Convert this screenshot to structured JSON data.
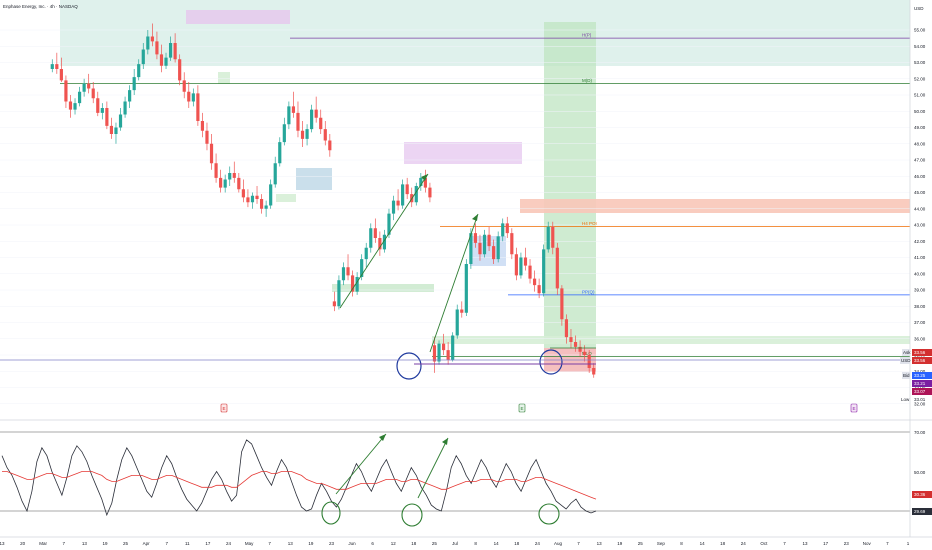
{
  "chart_title": "Enphase Energy, Inc. · 4h · NASDAQ",
  "currency": "USD",
  "chart_data": {
    "type": "candlestick",
    "price_axis_ticks": [
      "55.00",
      "54.00",
      "53.00",
      "52.00",
      "51.00",
      "50.00",
      "49.00",
      "48.00",
      "47.00",
      "46.00",
      "45.00",
      "44.00",
      "43.00",
      "42.00",
      "41.00",
      "40.00",
      "39.00",
      "38.00",
      "37.00",
      "36.00",
      "35.00",
      "34.00",
      "33.00",
      "32.00"
    ],
    "date_axis_ticks": [
      "13",
      "20",
      "Mar",
      "7",
      "13",
      "19",
      "25",
      "Apr",
      "7",
      "11",
      "17",
      "24",
      "May",
      "7",
      "13",
      "19",
      "23",
      "Jun",
      "6",
      "12",
      "18",
      "25",
      "Jul",
      "8",
      "14",
      "18",
      "24",
      "Aug",
      "7",
      "13",
      "19",
      "25",
      "Sep",
      "8",
      "14",
      "18",
      "24",
      "Oct",
      "7",
      "13",
      "17",
      "23",
      "Nov",
      "7",
      "1"
    ],
    "ohlc": [
      [
        52.6,
        53.2,
        52.4,
        52.9
      ],
      [
        52.9,
        53.6,
        52.3,
        52.6
      ],
      [
        52.6,
        53.3,
        51.8,
        51.9
      ],
      [
        51.9,
        52.2,
        50.2,
        50.6
      ],
      [
        50.6,
        51.0,
        49.6,
        50.1
      ],
      [
        50.1,
        50.8,
        49.8,
        50.5
      ],
      [
        50.5,
        51.5,
        50.3,
        51.2
      ],
      [
        51.2,
        52.0,
        50.9,
        51.7
      ],
      [
        51.7,
        52.3,
        51.1,
        51.4
      ],
      [
        51.4,
        51.8,
        50.5,
        50.8
      ],
      [
        50.8,
        51.2,
        49.7,
        49.9
      ],
      [
        49.9,
        50.5,
        49.5,
        50.2
      ],
      [
        50.2,
        50.6,
        48.9,
        49.1
      ],
      [
        49.1,
        49.6,
        48.3,
        48.6
      ],
      [
        48.6,
        49.3,
        48.0,
        49.0
      ],
      [
        49.0,
        50.2,
        48.8,
        49.8
      ],
      [
        49.8,
        50.9,
        49.6,
        50.6
      ],
      [
        50.6,
        51.6,
        50.2,
        51.3
      ],
      [
        51.3,
        52.6,
        51.0,
        52.1
      ],
      [
        52.1,
        53.2,
        51.9,
        52.9
      ],
      [
        52.9,
        54.2,
        52.6,
        53.8
      ],
      [
        53.8,
        55.0,
        53.5,
        54.6
      ],
      [
        54.6,
        55.4,
        54.0,
        54.3
      ],
      [
        54.3,
        54.9,
        53.2,
        53.5
      ],
      [
        53.5,
        54.1,
        52.4,
        52.8
      ],
      [
        52.8,
        53.6,
        52.6,
        53.3
      ],
      [
        53.3,
        54.6,
        53.1,
        54.2
      ],
      [
        54.2,
        54.8,
        53.0,
        53.2
      ],
      [
        53.2,
        53.5,
        51.6,
        51.9
      ],
      [
        51.9,
        52.4,
        50.8,
        51.2
      ],
      [
        51.2,
        51.8,
        50.2,
        50.6
      ],
      [
        50.6,
        51.4,
        50.3,
        51.1
      ],
      [
        51.1,
        51.6,
        49.1,
        49.4
      ],
      [
        49.4,
        49.9,
        48.4,
        48.8
      ],
      [
        48.8,
        49.3,
        47.6,
        48.0
      ],
      [
        48.0,
        48.6,
        46.4,
        46.8
      ],
      [
        46.8,
        47.4,
        45.6,
        45.9
      ],
      [
        45.9,
        46.4,
        45.0,
        45.3
      ],
      [
        45.3,
        46.1,
        45.0,
        45.8
      ],
      [
        45.8,
        46.6,
        45.4,
        46.2
      ],
      [
        46.2,
        46.9,
        45.6,
        45.9
      ],
      [
        45.9,
        46.2,
        45.0,
        45.2
      ],
      [
        45.2,
        45.8,
        44.4,
        44.7
      ],
      [
        44.7,
        45.2,
        44.1,
        44.4
      ],
      [
        44.4,
        45.0,
        44.0,
        44.8
      ],
      [
        44.8,
        45.4,
        44.3,
        44.6
      ],
      [
        44.6,
        44.9,
        43.7,
        44.0
      ],
      [
        44.0,
        44.5,
        43.5,
        44.2
      ],
      [
        44.2,
        45.8,
        44.0,
        45.5
      ],
      [
        45.5,
        47.2,
        45.3,
        46.8
      ],
      [
        46.8,
        48.4,
        46.6,
        48.1
      ],
      [
        48.1,
        49.6,
        47.9,
        49.2
      ],
      [
        49.2,
        50.6,
        48.9,
        50.3
      ],
      [
        50.3,
        51.2,
        49.6,
        49.9
      ],
      [
        49.9,
        50.6,
        48.4,
        48.8
      ],
      [
        48.8,
        49.4,
        47.8,
        48.3
      ],
      [
        48.3,
        49.2,
        47.9,
        48.9
      ],
      [
        48.9,
        50.4,
        48.7,
        50.1
      ],
      [
        50.1,
        50.9,
        49.3,
        49.6
      ],
      [
        49.6,
        50.1,
        48.6,
        48.9
      ],
      [
        48.9,
        49.4,
        47.9,
        48.2
      ],
      [
        48.2,
        48.6,
        47.2,
        47.6
      ],
      [
        38.3,
        38.9,
        37.7,
        38.0
      ],
      [
        38.0,
        39.9,
        37.8,
        39.6
      ],
      [
        39.6,
        40.7,
        39.3,
        40.4
      ],
      [
        40.4,
        41.2,
        39.6,
        39.9
      ],
      [
        39.9,
        40.2,
        38.6,
        38.9
      ],
      [
        38.9,
        40.1,
        38.7,
        39.8
      ],
      [
        39.8,
        41.2,
        39.6,
        40.9
      ],
      [
        40.9,
        41.9,
        40.4,
        41.6
      ],
      [
        41.6,
        43.1,
        41.3,
        42.8
      ],
      [
        42.8,
        43.4,
        41.9,
        42.2
      ],
      [
        42.2,
        42.6,
        41.1,
        41.5
      ],
      [
        41.5,
        42.7,
        41.3,
        42.4
      ],
      [
        42.4,
        44.0,
        42.2,
        43.7
      ],
      [
        43.7,
        44.8,
        43.3,
        44.5
      ],
      [
        44.5,
        45.2,
        43.9,
        44.2
      ],
      [
        44.2,
        45.8,
        44.0,
        45.5
      ],
      [
        45.5,
        45.9,
        44.6,
        44.9
      ],
      [
        44.9,
        45.3,
        44.1,
        44.4
      ],
      [
        44.4,
        45.6,
        44.2,
        45.4
      ],
      [
        45.4,
        46.2,
        45.1,
        45.9
      ],
      [
        45.9,
        46.4,
        45.0,
        45.3
      ],
      [
        45.3,
        45.6,
        44.4,
        44.7
      ],
      [
        35.6,
        36.1,
        33.9,
        34.6
      ],
      [
        34.6,
        35.9,
        34.4,
        35.7
      ],
      [
        35.7,
        36.3,
        35.0,
        35.3
      ],
      [
        35.3,
        35.8,
        34.4,
        34.7
      ],
      [
        34.7,
        36.4,
        34.6,
        36.2
      ],
      [
        36.2,
        38.1,
        36.0,
        37.8
      ],
      [
        37.8,
        38.3,
        37.3,
        37.6
      ],
      [
        37.6,
        40.9,
        37.4,
        40.6
      ],
      [
        40.6,
        42.8,
        40.3,
        42.5
      ],
      [
        42.5,
        43.1,
        41.6,
        41.9
      ],
      [
        41.9,
        42.4,
        40.8,
        41.2
      ],
      [
        41.2,
        42.7,
        41.0,
        42.4
      ],
      [
        42.4,
        42.9,
        41.4,
        41.7
      ],
      [
        41.7,
        42.1,
        40.6,
        40.9
      ],
      [
        40.9,
        42.6,
        40.7,
        42.3
      ],
      [
        42.3,
        43.4,
        42.0,
        43.1
      ],
      [
        43.1,
        43.5,
        42.2,
        42.5
      ],
      [
        42.5,
        42.8,
        40.9,
        41.2
      ],
      [
        41.2,
        41.6,
        39.6,
        39.9
      ],
      [
        39.9,
        41.3,
        39.7,
        41.0
      ],
      [
        41.0,
        41.6,
        40.2,
        40.5
      ],
      [
        40.5,
        40.9,
        39.4,
        39.7
      ],
      [
        39.7,
        40.2,
        38.9,
        39.3
      ],
      [
        39.3,
        39.7,
        38.5,
        38.8
      ],
      [
        38.8,
        41.8,
        38.6,
        41.5
      ],
      [
        41.5,
        43.2,
        41.3,
        42.9
      ],
      [
        42.9,
        43.2,
        41.2,
        41.6
      ],
      [
        41.6,
        41.9,
        38.7,
        39.1
      ],
      [
        39.1,
        39.3,
        36.8,
        37.2
      ],
      [
        37.2,
        37.5,
        35.7,
        36.1
      ],
      [
        36.1,
        36.6,
        35.4,
        35.8
      ],
      [
        35.8,
        36.2,
        35.2,
        35.5
      ],
      [
        35.5,
        35.9,
        34.9,
        35.2
      ],
      [
        35.2,
        35.6,
        34.6,
        35.0
      ],
      [
        35.0,
        35.3,
        33.9,
        34.2
      ],
      [
        34.2,
        34.5,
        33.6,
        33.8
      ]
    ],
    "key_levels": [
      {
        "label": "H(P)",
        "value": 54.5
      },
      {
        "label": "M(D)",
        "value": 51.7
      },
      {
        "label": "H4 POI",
        "value": 42.9
      },
      {
        "label": "PP(Q)",
        "value": 38.7
      },
      {
        "label": "MLO",
        "value": 34.9
      }
    ],
    "current_price_labels": [
      "33.56",
      "33.56",
      "33.25",
      "33.21",
      "33.07",
      "33.01"
    ],
    "price_badges": [
      "Ask",
      "USD",
      "Bid",
      "Low"
    ],
    "earnings_markers": [
      "E",
      "E",
      "E"
    ],
    "rsi": {
      "ticks": [
        "70.00",
        "50.00",
        "30.36",
        "29.69"
      ],
      "overbought": 70,
      "oversold": 30,
      "values": [
        58,
        52,
        48,
        42,
        35,
        30,
        40,
        55,
        62,
        58,
        50,
        44,
        38,
        47,
        58,
        63,
        60,
        55,
        48,
        42,
        36,
        28,
        34,
        46,
        56,
        62,
        58,
        52,
        46,
        40,
        37,
        44,
        52,
        58,
        54,
        47,
        41,
        36,
        33,
        30,
        34,
        40,
        46,
        50,
        46,
        40,
        35,
        38,
        60,
        66,
        64,
        58,
        52,
        47,
        43,
        50,
        56,
        52,
        45,
        38,
        32,
        30,
        31,
        38,
        44,
        40,
        35,
        32,
        36,
        42,
        48,
        54,
        50,
        44,
        40,
        46,
        52,
        56,
        50,
        44,
        40,
        46,
        52,
        48,
        42,
        38,
        33,
        31,
        30,
        40,
        52,
        58,
        54,
        48,
        44,
        50,
        56,
        52,
        46,
        42,
        48,
        54,
        50,
        44,
        40,
        46,
        52,
        56,
        50,
        44,
        40,
        35,
        33,
        31,
        34,
        36,
        32,
        30,
        29,
        30
      ],
      "signal": [
        50,
        50,
        49,
        48,
        47,
        46,
        46,
        47,
        48,
        49,
        49,
        48,
        47,
        47,
        48,
        49,
        50,
        50,
        50,
        49,
        48,
        46,
        45,
        45,
        46,
        47,
        48,
        48,
        48,
        47,
        46,
        46,
        47,
        48,
        48,
        47,
        46,
        45,
        44,
        43,
        42,
        42,
        42,
        43,
        43,
        43,
        42,
        42,
        44,
        46,
        48,
        49,
        50,
        50,
        49,
        49,
        50,
        50,
        50,
        49,
        48,
        46,
        45,
        44,
        44,
        43,
        42,
        41,
        41,
        41,
        42,
        43,
        44,
        44,
        44,
        44,
        45,
        46,
        46,
        46,
        45,
        45,
        46,
        46,
        45,
        44,
        43,
        42,
        41,
        41,
        42,
        43,
        44,
        45,
        45,
        45,
        46,
        46,
        46,
        45,
        45,
        46,
        46,
        46,
        45,
        45,
        46,
        47,
        47,
        46,
        45,
        44,
        43,
        42,
        41,
        40,
        39,
        38,
        37,
        36
      ]
    }
  }
}
